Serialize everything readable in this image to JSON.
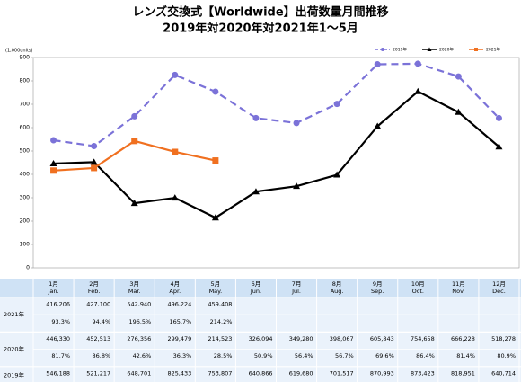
{
  "chart_data": {
    "type": "line",
    "title": "レンズ交換式【Worldwide】出荷数量月間推移",
    "subtitle": "2019年対2020年対2021年1～5月",
    "y_label": "(1,000units)",
    "categories": [
      "1月",
      "2月",
      "3月",
      "4月",
      "5月",
      "6月",
      "7月",
      "8月",
      "9月",
      "10月",
      "11月",
      "12月"
    ],
    "categories_en": [
      "Jan.",
      "Feb.",
      "Mar.",
      "Apr.",
      "May.",
      "Jun.",
      "Jul.",
      "Aug.",
      "Sep.",
      "Oct.",
      "Nov.",
      "Dec."
    ],
    "ylim": [
      0,
      900
    ],
    "yticks": [
      0,
      100,
      200,
      300,
      400,
      500,
      600,
      700,
      800,
      900
    ],
    "grid": false,
    "legend": "top-right",
    "series": [
      {
        "name": "2019年",
        "color": "#7b72d8",
        "dashed": true,
        "marker": "circle",
        "values": [
          546.188,
          521.217,
          648.701,
          825.433,
          753.807,
          640.866,
          619.68,
          701.517,
          870.993,
          873.423,
          818.951,
          640.714
        ],
        "value_labels": [
          "546,188",
          "521,217",
          "648,701",
          "825,433",
          "753,807",
          "640,866",
          "619,680",
          "701,517",
          "870,993",
          "873,423",
          "818,951",
          "640,714"
        ]
      },
      {
        "name": "2020年",
        "color": "#000000",
        "dashed": false,
        "marker": "triangle",
        "values": [
          446.33,
          452.513,
          276.356,
          299.479,
          214.523,
          326.094,
          349.28,
          398.067,
          605.843,
          754.658,
          666.228,
          518.278
        ],
        "value_labels": [
          "446,330",
          "452,513",
          "276,356",
          "299,479",
          "214,523",
          "326,094",
          "349,280",
          "398,067",
          "605,843",
          "754,658",
          "666,228",
          "518,278"
        ],
        "yoy_labels": [
          "81.7%",
          "86.8%",
          "42.6%",
          "36.3%",
          "28.5%",
          "50.9%",
          "56.4%",
          "56.7%",
          "69.6%",
          "86.4%",
          "81.4%",
          "80.9%"
        ]
      },
      {
        "name": "2021年",
        "color": "#f07020",
        "dashed": false,
        "marker": "square",
        "values": [
          416.206,
          427.1,
          542.94,
          496.224,
          459.408,
          null,
          null,
          null,
          null,
          null,
          null,
          null
        ],
        "value_labels": [
          "416,206",
          "427,100",
          "542,940",
          "496,224",
          "459,408",
          null,
          null,
          null,
          null,
          null,
          null,
          null
        ],
        "yoy_labels": [
          "93.3%",
          "94.4%",
          "196.5%",
          "165.7%",
          "214.2%",
          null,
          null,
          null,
          null,
          null,
          null,
          null
        ]
      }
    ]
  }
}
